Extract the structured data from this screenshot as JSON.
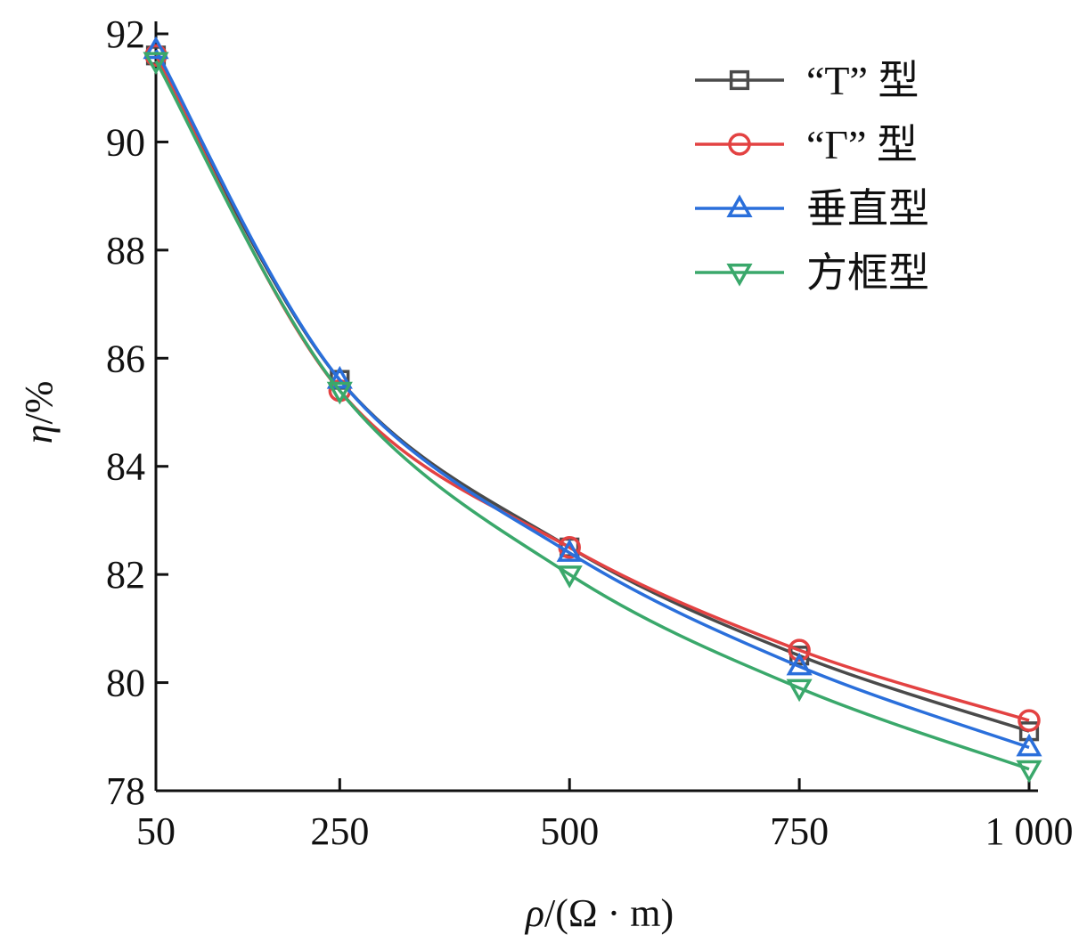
{
  "chart_data": {
    "type": "line",
    "x": [
      50,
      250,
      500,
      750,
      1000
    ],
    "xtick_labels": [
      "50",
      "250",
      "500",
      "750",
      "1 000"
    ],
    "xlim": [
      50,
      1000
    ],
    "ylim": [
      78,
      92
    ],
    "yticks": [
      78,
      80,
      82,
      84,
      86,
      88,
      90,
      92
    ],
    "ytick_labels": [
      "78",
      "80",
      "82",
      "84",
      "86",
      "88",
      "90",
      "92"
    ],
    "xlabel_var": "ρ",
    "xlabel_unit": "/(Ω · m)",
    "ylabel_var": "η",
    "ylabel_unit": "/%",
    "grid": false,
    "legend_position": "top-right",
    "series": [
      {
        "name": "“T” 型",
        "color": "#4a4a4a",
        "marker": "square",
        "values": [
          91.6,
          85.6,
          82.5,
          80.5,
          79.1
        ]
      },
      {
        "name": "“Γ” 型",
        "color": "#e34242",
        "marker": "circle",
        "values": [
          91.6,
          85.4,
          82.5,
          80.6,
          79.3
        ]
      },
      {
        "name": "垂直型",
        "color": "#2a6fdb",
        "marker": "triangle-up",
        "values": [
          91.7,
          85.6,
          82.4,
          80.3,
          78.8
        ]
      },
      {
        "name": "方框型",
        "color": "#3aa86b",
        "marker": "triangle-down",
        "values": [
          91.5,
          85.4,
          82.0,
          79.9,
          78.4
        ]
      }
    ]
  }
}
